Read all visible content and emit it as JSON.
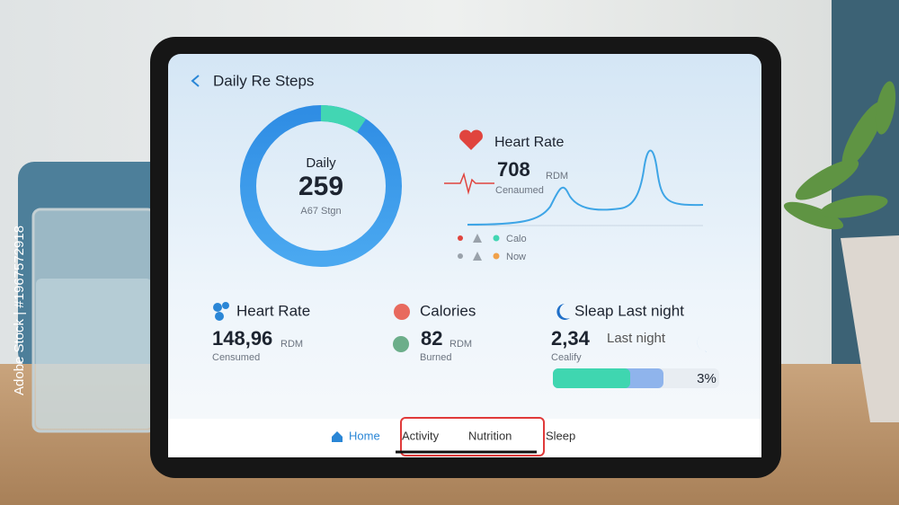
{
  "watermark": "Adobe Stock | #1967572918",
  "header": {
    "title": "Daily Re Steps"
  },
  "ring": {
    "label": "Daily",
    "value": "259",
    "caption": "A67 Stgn"
  },
  "heart_panel": {
    "title": "Heart Rate",
    "value": "708",
    "unit": "RDM",
    "caption": "Cenaumed",
    "legend": [
      "Calo",
      "Now"
    ]
  },
  "cards": [
    {
      "title": "Heart Rate",
      "value": "148,96",
      "unit": "RDM",
      "caption": "Censumed"
    },
    {
      "title": "Calories",
      "value": "82",
      "unit": "RDM",
      "caption": "Burned"
    },
    {
      "title": "Sleap Last night",
      "value": "2,34",
      "unit": "Last night",
      "caption": "Cealify",
      "progress_label": "3%"
    }
  ],
  "nav": [
    "Home",
    "Activity",
    "Nutrition",
    "Sleep"
  ]
}
